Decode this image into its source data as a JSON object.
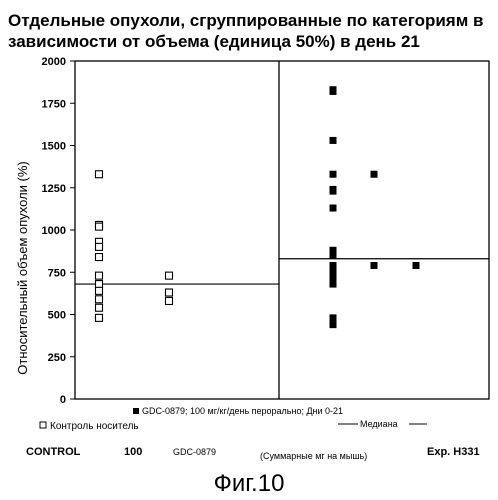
{
  "chart_data": {
    "type": "scatter",
    "title": "Отдельные опухоли, сгруппированные по категориям в зависимости от объема (единица 50%) в день 21",
    "ylabel": "Относительный объем опухоли (%)",
    "ylim": [
      0,
      2000
    ],
    "y_ticks": [
      0,
      250,
      500,
      750,
      1000,
      1250,
      1500,
      1750,
      2000
    ],
    "y_tick_labels": [
      "0",
      "250",
      "500",
      "750",
      "1000",
      "1250",
      "1500",
      "1750",
      "2000"
    ],
    "grid": false,
    "groups": [
      {
        "name": "Контроль носитель",
        "marker": "open-square",
        "median": 680,
        "bottom_labels": [
          "CONTROL",
          "100"
        ],
        "points": [
          {
            "col": 0,
            "y": 1330
          },
          {
            "col": 0,
            "y": 1030
          },
          {
            "col": 0,
            "y": 1020
          },
          {
            "col": 0,
            "y": 930
          },
          {
            "col": 0,
            "y": 900
          },
          {
            "col": 0,
            "y": 840
          },
          {
            "col": 0,
            "y": 730
          },
          {
            "col": 0,
            "y": 680
          },
          {
            "col": 0,
            "y": 640
          },
          {
            "col": 0,
            "y": 590
          },
          {
            "col": 0,
            "y": 540
          },
          {
            "col": 0,
            "y": 480
          },
          {
            "col": 1,
            "y": 730
          },
          {
            "col": 1,
            "y": 630
          },
          {
            "col": 1,
            "y": 580
          }
        ]
      },
      {
        "name": "GDC-0879; 100 мг/кг/день перорально; Дни 0-21",
        "marker": "filled-square",
        "median": 830,
        "bottom_labels": [
          "GDC-0879"
        ],
        "points": [
          {
            "col": 0,
            "y": 1830
          },
          {
            "col": 0,
            "y": 1820
          },
          {
            "col": 0,
            "y": 1530
          },
          {
            "col": 0,
            "y": 1330
          },
          {
            "col": 0,
            "y": 1240
          },
          {
            "col": 0,
            "y": 1230
          },
          {
            "col": 0,
            "y": 1130
          },
          {
            "col": 0,
            "y": 880
          },
          {
            "col": 0,
            "y": 850
          },
          {
            "col": 0,
            "y": 790
          },
          {
            "col": 0,
            "y": 780
          },
          {
            "col": 0,
            "y": 760
          },
          {
            "col": 0,
            "y": 720
          },
          {
            "col": 0,
            "y": 690
          },
          {
            "col": 0,
            "y": 680
          },
          {
            "col": 0,
            "y": 480
          },
          {
            "col": 0,
            "y": 440
          },
          {
            "col": 1,
            "y": 1330
          },
          {
            "col": 1,
            "y": 790
          },
          {
            "col": 2,
            "y": 790
          }
        ]
      }
    ],
    "legend": {
      "median_label": "Медиана"
    },
    "bottom_note": "(Суммарные мг на мышь)",
    "experiment_label": "Exp. H331"
  },
  "figure_caption": "Фиг.10"
}
